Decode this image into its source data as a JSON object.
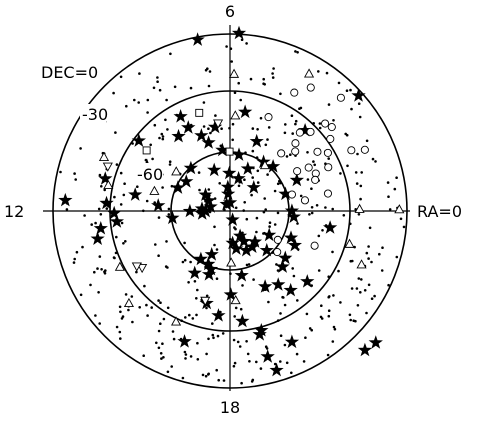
{
  "chart_data": {
    "type": "scatter",
    "projection": "polar (south celestial pole at center)",
    "title": "",
    "labels": {
      "top": "6",
      "bottom": "18",
      "left": "12",
      "right": "RA=0",
      "dec_rings": [
        "DEC=0",
        "-30",
        "-60"
      ]
    },
    "grid": true,
    "series": [
      {
        "marker": "filled-star",
        "points": [
          [
            41.9,
            -2.2
          ],
          [
            47.0,
            -34.0
          ],
          [
            17.0,
            -60.5
          ],
          [
            332.1,
            -52.7
          ],
          [
            354.7,
            -57.4
          ],
          [
            0.1,
            -58.5
          ],
          [
            336.2,
            -56.1
          ],
          [
            350.5,
            -38.4
          ],
          [
            317.6,
            -36.8
          ],
          [
            294.9,
            -47.6
          ],
          [
            303.2,
            -45.2
          ],
          [
            313.3,
            -51.0
          ],
          [
            307.4,
            -39.2
          ],
          [
            263.7,
            -36.5
          ],
          [
            283.5,
            -25.4
          ],
          [
            276.4,
            -33.6
          ],
          [
            295.3,
            -16.3
          ],
          [
            284.5,
            -13.5
          ],
          [
            286.3,
            -5.6
          ],
          [
            284.7,
            -27.2
          ],
          [
            317.9,
            9.9
          ],
          [
            314.1,
            8.6
          ],
          [
            250.8,
            -19.7
          ],
          [
            255.8,
            -41.6
          ],
          [
            247.8,
            -60.8
          ],
          [
            251.9,
            -58.8
          ],
          [
            240.4,
            -53.7
          ],
          [
            251.7,
            -56.0
          ],
          [
            238.8,
            -61.4
          ],
          [
            280.3,
            -56.7
          ],
          [
            270.6,
            -47.4
          ],
          [
            247.2,
            -66.0
          ],
          [
            175.7,
            -53.4
          ],
          [
            187.0,
            -60.5
          ],
          [
            170.3,
            -41.1
          ],
          [
            185.4,
            -32.2
          ],
          [
            181.1,
            -31.1
          ],
          [
            165.5,
            -24.5
          ],
          [
            187.7,
            -23.7
          ],
          [
            176.3,
            -6.1
          ],
          [
            176.4,
            -27.1
          ],
          [
            191.9,
            -21.2
          ],
          [
            142.4,
            -31.5
          ],
          [
            151.5,
            -42.0
          ],
          [
            156.0,
            -61.0
          ],
          [
            146.1,
            -63.2
          ],
          [
            146.7,
            -75.1
          ],
          [
            132.4,
            -60.5
          ],
          [
            154.1,
            -78.0
          ],
          [
            167.8,
            -79.9
          ],
          [
            185.7,
            -75.8
          ],
          [
            180.4,
            -69.6
          ],
          [
            175.5,
            -75.7
          ],
          [
            180.8,
            -77.6
          ],
          [
            124.6,
            -43.9
          ],
          [
            117.6,
            -35.8
          ],
          [
            100.1,
            -46.7
          ],
          [
            116.6,
            -42.6
          ],
          [
            110.8,
            -49.0
          ],
          [
            80.9,
            -61.1
          ],
          [
            111.1,
            -67.7
          ],
          [
            89.5,
            -85.8
          ],
          [
            107.4,
            -53.6
          ],
          [
            96.2,
            -81.3
          ],
          [
            117.1,
            -86.2
          ],
          [
            87.1,
            0.5
          ],
          [
            100.7,
            -1.4
          ],
          [
            97.2,
            -58.8
          ],
          [
            91.1,
            -70.8
          ],
          [
            81.3,
            -39.1
          ],
          [
            69.0,
            -52.1
          ],
          [
            45.9,
            -58.5
          ],
          [
            75.2,
            -72.9
          ],
          [
            67.1,
            -66.7
          ],
          [
            95.2,
            -77.8
          ],
          [
            55.6,
            -59.8
          ],
          [
            24.7,
            -52.6
          ],
          [
            44.7,
            -73.0
          ],
          [
            328.4,
            -66.6
          ],
          [
            319.6,
            -53.1
          ],
          [
            313.0,
            -62.6
          ],
          [
            309.0,
            -69.8
          ],
          [
            292.5,
            -68.3
          ],
          [
            274.7,
            -73.6
          ],
          [
            279.5,
            -70.5
          ],
          [
            301.7,
            -68.5
          ],
          [
            294.7,
            -73.0
          ],
          [
            286.4,
            -85.3
          ],
          [
            292.0,
            -76.3
          ]
        ]
      },
      {
        "marker": "open-circle",
        "points": [
          [
            56.8,
            -15.0
          ],
          [
            61.5,
            -21.5
          ],
          [
            45.6,
            -9.4
          ],
          [
            42.6,
            -24.3
          ],
          [
            39.5,
            -22.9
          ],
          [
            35.7,
            -27.2
          ],
          [
            44.5,
            -32.6
          ],
          [
            30.7,
            -32.1
          ],
          [
            48.3,
            -36.6
          ],
          [
            34.1,
            -36.3
          ],
          [
            26.6,
            -21.0
          ],
          [
            23.6,
            -42.4
          ],
          [
            28.9,
            -44.3
          ],
          [
            20.1,
            -43.9
          ],
          [
            24.0,
            -35.3
          ],
          [
            14.9,
            -57.4
          ],
          [
            30.7,
            -50.3
          ],
          [
            42.4,
            -45.1
          ],
          [
            48.4,
            -50.8
          ],
          [
            67.7,
            -38.4
          ],
          [
            46.0,
            -42.1
          ],
          [
            10.1,
            -39.4
          ],
          [
            8.1,
            -51.5
          ],
          [
            24.4,
            -14.7
          ],
          [
            337.7,
            -43.5
          ],
          [
            328.9,
            -61.6
          ],
          [
            319.0,
            -58.2
          ]
        ]
      },
      {
        "marker": "open-triangle",
        "points": [
          [
            88.3,
            -20.5
          ],
          [
            60.0,
            -9.6
          ],
          [
            86.8,
            -41.6
          ],
          [
            0.7,
            -24.1
          ],
          [
            0.4,
            -3.9
          ],
          [
            144.0,
            -56.2
          ],
          [
            168.2,
            -26.8
          ],
          [
            157.0,
            -20.4
          ],
          [
            151.7,
            -46.0
          ],
          [
            207.1,
            -27.1
          ],
          [
            222.5,
            -20.3
          ],
          [
            165.5,
            -50.3
          ],
          [
            244.1,
            -27.2
          ],
          [
            273.6,
            -44.3
          ],
          [
            271.3,
            -63.5
          ],
          [
            337.7,
            -17.7
          ],
          [
            52.4,
            -60.9
          ],
          [
            344.4,
            -26.9
          ]
        ]
      },
      {
        "marker": "open-inverted-triangle",
        "points": [
          [
            159.8,
            -23.8
          ],
          [
            212.7,
            -36.9
          ],
          [
            210.5,
            -35.0
          ],
          [
            254.5,
            -42.9
          ],
          [
            97.7,
            -44.8
          ]
        ]
      },
      {
        "marker": "open-square",
        "points": [
          [
            107.4,
            -37.7
          ],
          [
            144.0,
            -37.6
          ],
          [
            90.4,
            -59.8
          ]
        ]
      },
      {
        "marker": "small-dot",
        "count_shown": 450
      }
    ]
  }
}
